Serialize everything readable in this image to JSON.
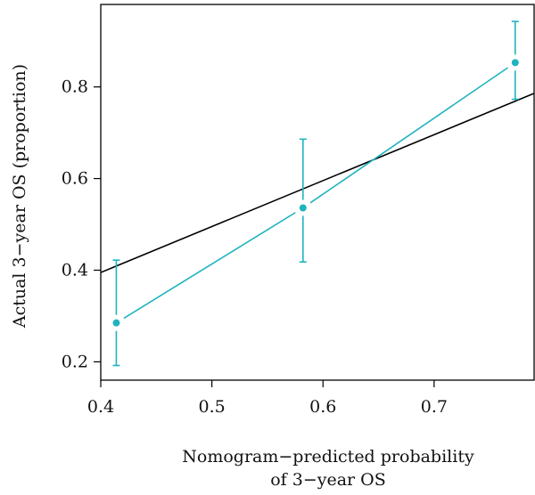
{
  "chart_data": {
    "type": "line",
    "title": "",
    "xlabel_lines": [
      "Nomogram−predicted probability",
      "of 3−year OS"
    ],
    "ylabel": "Actual 3−year OS (proportion)",
    "xlim": [
      0.4,
      0.79
    ],
    "ylim": [
      0.16,
      0.98
    ],
    "x_ticks": [
      0.4,
      0.5,
      0.6,
      0.7
    ],
    "x_tick_labels": [
      "0.4",
      "0.5",
      "0.6",
      "0.7"
    ],
    "y_ticks": [
      0.2,
      0.4,
      0.6,
      0.8
    ],
    "y_tick_labels": [
      "0.2",
      "0.4",
      "0.6",
      "0.8"
    ],
    "grid": false,
    "reference_line": {
      "x": [
        0.4,
        0.79
      ],
      "y": [
        0.395,
        0.786
      ],
      "color": "#000000"
    },
    "series": [
      {
        "color": "#1fb3bf",
        "points": [
          {
            "x": 0.414,
            "y": 0.285,
            "lower": 0.192,
            "upper": 0.422
          },
          {
            "x": 0.582,
            "y": 0.536,
            "lower": 0.418,
            "upper": 0.686
          },
          {
            "x": 0.773,
            "y": 0.853,
            "lower": 0.773,
            "upper": 0.943
          }
        ]
      }
    ]
  }
}
